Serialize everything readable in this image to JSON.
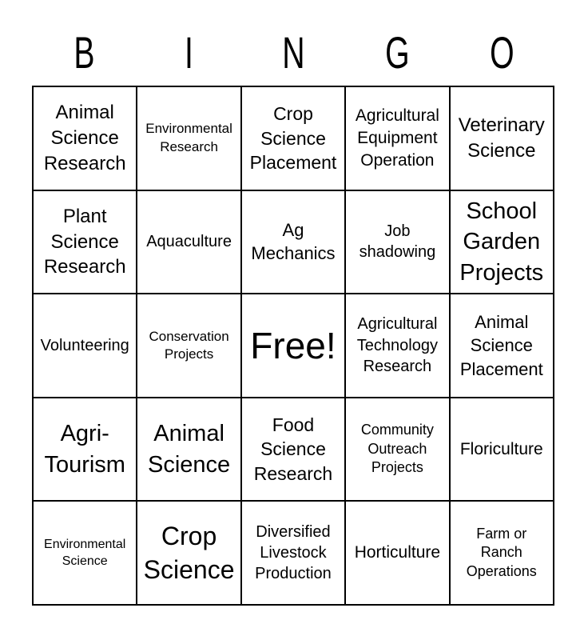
{
  "title": {
    "letters": [
      "B",
      "I",
      "N",
      "G",
      "O"
    ]
  },
  "colors": {
    "background": "#ffffff",
    "line": "#000000",
    "text": "#000000"
  },
  "card": {
    "rows": [
      {
        "cells": [
          {
            "label": "Animal\nScience\nResearch"
          },
          {
            "label": "Environmental\nResearch"
          },
          {
            "label": "Crop\nScience\nPlacement"
          },
          {
            "label": "Agricultural\nEquipment\nOperation"
          },
          {
            "label": "Veterinary\nScience"
          }
        ]
      },
      {
        "cells": [
          {
            "label": "Plant\nScience\nResearch"
          },
          {
            "label": "Aquaculture"
          },
          {
            "label": "Ag\nMechanics"
          },
          {
            "label": "Job\nshadowing"
          },
          {
            "label": "School\nGarden\nProjects"
          }
        ]
      },
      {
        "cells": [
          {
            "label": "Volunteering"
          },
          {
            "label": "Conservation\nProjects"
          },
          {
            "label": "Free!"
          },
          {
            "label": "Agricultural\nTechnology\nResearch"
          },
          {
            "label": "Animal\nScience\nPlacement"
          }
        ]
      },
      {
        "cells": [
          {
            "label": "Agri-\nTourism"
          },
          {
            "label": "Animal\nScience"
          },
          {
            "label": "Food\nScience\nResearch"
          },
          {
            "label": "Community\nOutreach\nProjects"
          },
          {
            "label": "Floriculture"
          }
        ]
      },
      {
        "cells": [
          {
            "label": "Environmental\nScience"
          },
          {
            "label": "Crop\nScience"
          },
          {
            "label": "Diversified\nLivestock\nProduction"
          },
          {
            "label": "Horticulture"
          },
          {
            "label": "Farm or\nRanch\nOperations"
          }
        ]
      }
    ]
  }
}
